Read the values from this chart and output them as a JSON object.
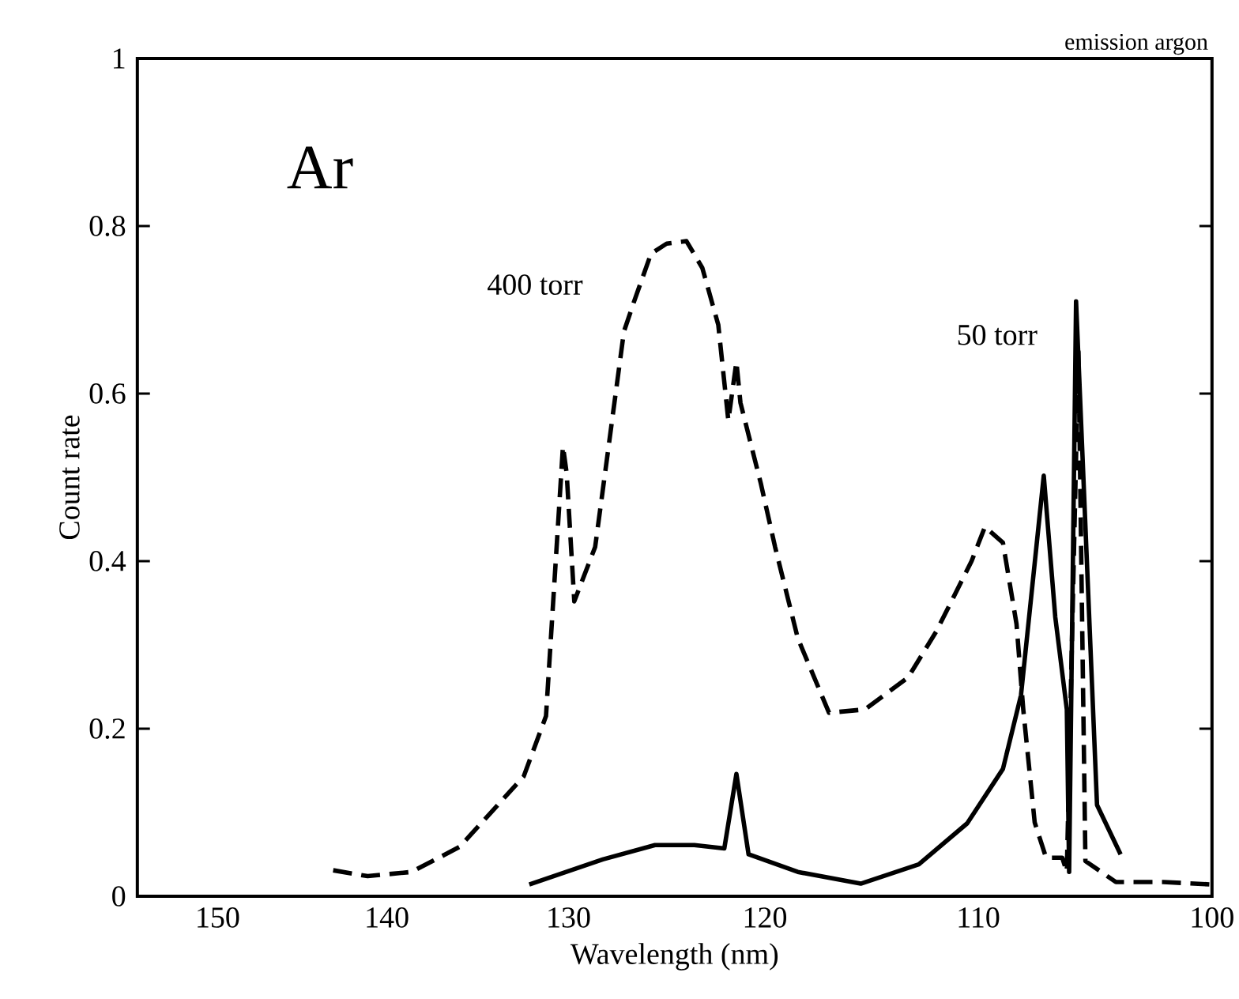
{
  "chart_data": {
    "type": "line",
    "title": "emission argon",
    "xlabel": "Wavelength (nm)",
    "ylabel": "Count rate",
    "annotations": [
      "Ar"
    ],
    "log": "x",
    "xlim": [
      155,
      100
    ],
    "ylim": [
      0,
      1
    ],
    "xticks": [
      150,
      140,
      130,
      120,
      110,
      100
    ],
    "yticks": [
      0,
      0.2,
      0.4,
      0.6,
      0.8,
      1
    ],
    "marker": "none",
    "series": [
      {
        "name": "400 torr",
        "color": "#000000",
        "line_style": "dashed",
        "x": [
          143.1,
          141.1,
          138.6,
          135.9,
          132.4,
          131.2,
          130.3,
          130.1,
          129.7,
          128.6,
          128.1,
          127.1,
          126.6,
          125.7,
          124.9,
          123.9,
          123.1,
          122.3,
          121.8,
          121.4,
          121.2,
          120.2,
          119.5,
          118.4,
          116.9,
          115.2,
          113.2,
          111.9,
          110.3,
          109.7,
          108.9,
          108.3,
          108.0,
          107.5,
          107.0,
          106.3,
          106.1,
          105.6,
          105.3,
          104.0,
          102.0,
          100.0
        ],
        "values": [
          0.031,
          0.024,
          0.029,
          0.059,
          0.143,
          0.215,
          0.537,
          0.505,
          0.352,
          0.417,
          0.502,
          0.674,
          0.708,
          0.767,
          0.779,
          0.782,
          0.75,
          0.682,
          0.568,
          0.638,
          0.589,
          0.493,
          0.417,
          0.308,
          0.219,
          0.223,
          0.261,
          0.316,
          0.4,
          0.441,
          0.422,
          0.325,
          0.223,
          0.088,
          0.046,
          0.046,
          0.029,
          0.65,
          0.042,
          0.017,
          0.017,
          0.014
        ]
      },
      {
        "name": "50 torr",
        "color": "#000000",
        "line_style": "solid",
        "x": [
          132.1,
          128.2,
          125.5,
          123.5,
          122.0,
          121.4,
          120.8,
          118.4,
          115.4,
          112.7,
          110.5,
          108.9,
          108.1,
          107.1,
          106.6,
          106.1,
          106.0,
          105.7,
          104.8,
          103.8
        ],
        "values": [
          0.014,
          0.044,
          0.061,
          0.061,
          0.057,
          0.146,
          0.05,
          0.029,
          0.015,
          0.038,
          0.087,
          0.152,
          0.24,
          0.502,
          0.333,
          0.223,
          0.029,
          0.71,
          0.109,
          0.05
        ]
      }
    ]
  }
}
